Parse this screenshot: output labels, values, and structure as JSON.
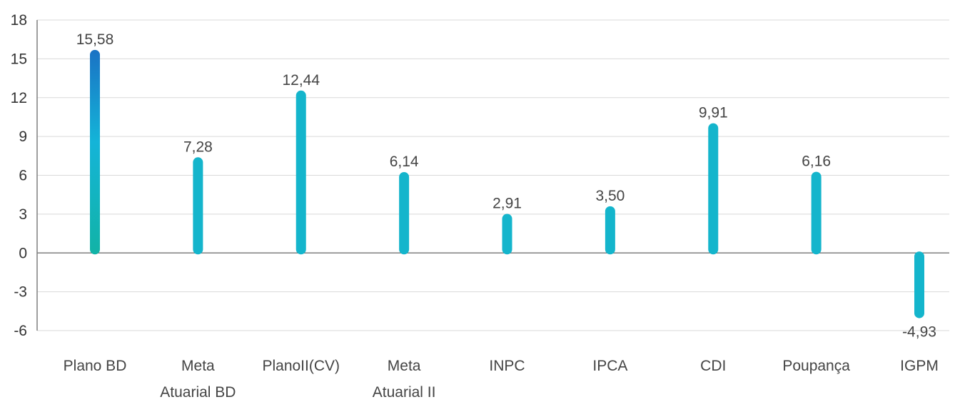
{
  "chart_data": {
    "type": "bar",
    "categories": [
      [
        "Plano BD"
      ],
      [
        "Meta",
        "Atuarial BD"
      ],
      [
        "PlanoII(CV)"
      ],
      [
        "Meta",
        "Atuarial II"
      ],
      [
        "INPC"
      ],
      [
        "IPCA"
      ],
      [
        "CDI"
      ],
      [
        "Poupança"
      ],
      [
        "IGPM"
      ]
    ],
    "values": [
      15.58,
      7.28,
      12.44,
      6.14,
      2.91,
      3.5,
      9.91,
      6.16,
      -4.93
    ],
    "value_labels": [
      "15,58",
      "7,28",
      "12,44",
      "6,14",
      "2,91",
      "3,50",
      "9,91",
      "6,16",
      "-4,93"
    ],
    "yticks": [
      18,
      15,
      12,
      9,
      6,
      3,
      0,
      -3,
      -6
    ],
    "ytick_labels": [
      "18",
      "15",
      "12",
      "9",
      "6",
      "3",
      "0",
      "-3",
      "-6"
    ],
    "ylim": [
      -6,
      18
    ],
    "grid": true,
    "legend": "none",
    "colors": {
      "bar_top": "#1a72c4",
      "bar_mid": "#14b4d8",
      "bar_bottom": "#12b3a6",
      "bar_plain": "#14b5cc"
    }
  }
}
